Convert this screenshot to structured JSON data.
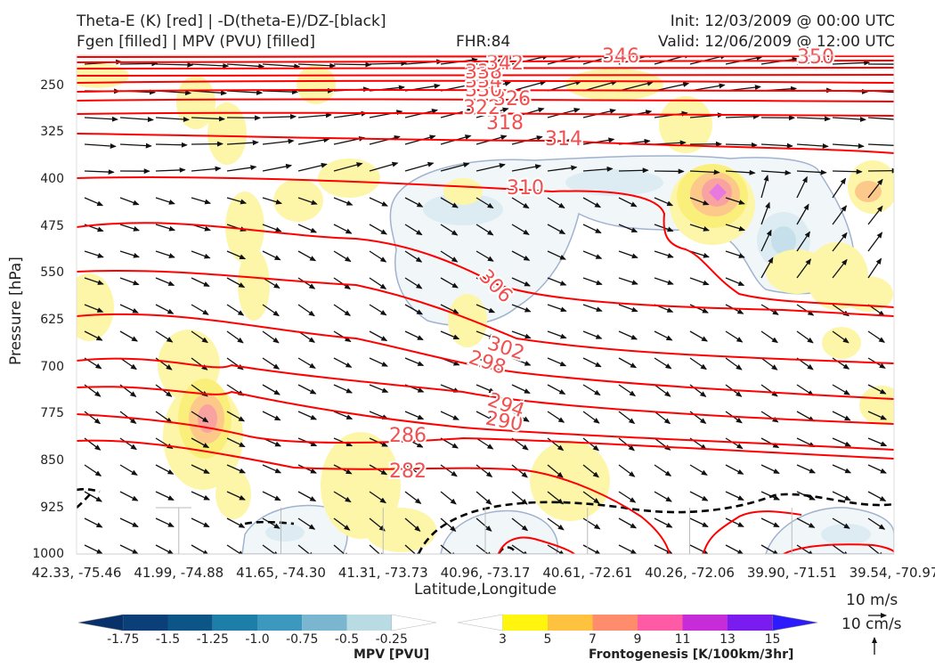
{
  "header": {
    "title_line1": "Theta-E (K) [red] | -D(theta-E)/DZ-[black]",
    "title_line2": "Fgen [filled] | MPV (PVU) [filled]",
    "fhr": "FHR:84",
    "init": "Init: 12/03/2009 @ 00:00 UTC",
    "valid": "Valid: 12/06/2009 @ 12:00 UTC"
  },
  "chart_data": {
    "type": "cross-section",
    "ylabel": "Pressure [hPa]",
    "xlabel": "Latitude,Longitude",
    "yticks": [
      "250",
      "325",
      "400",
      "475",
      "550",
      "625",
      "700",
      "775",
      "850",
      "925",
      "1000"
    ],
    "xticks": [
      "42.33, -75.46",
      "41.99, -74.88",
      "41.65, -74.30",
      "41.31, -73.73",
      "40.96, -73.17",
      "40.61, -72.61",
      "40.26, -72.06",
      "39.90, -71.51",
      "39.54, -70.97"
    ],
    "theta_e_labels": [
      "282",
      "286",
      "290",
      "294",
      "298",
      "302",
      "306",
      "310",
      "314",
      "318",
      "322",
      "326",
      "330",
      "334",
      "338",
      "342",
      "346",
      "350"
    ],
    "theta_e_color": "#ff0000",
    "stability_color": "#000000",
    "vector_reference": {
      "label_ms": "10 m/s",
      "label_cms": "10 cm/s"
    },
    "mpv_colorbar": {
      "label": "MPV [PVU]",
      "ticks": [
        "-1.75",
        "-1.5",
        "-1.25",
        "-1.0",
        "-0.75",
        "-0.5",
        "-0.25"
      ],
      "colors": [
        "#08306b",
        "#0b3f78",
        "#0c5587",
        "#1d7ea8",
        "#3d98be",
        "#7ab6cf",
        "#b9dbe4",
        "#ffffff"
      ]
    },
    "fgen_colorbar": {
      "label": "Frontogenesis [K/100km/3hr]",
      "ticks": [
        "3",
        "5",
        "7",
        "9",
        "11",
        "13",
        "15"
      ],
      "colors": [
        "#ffffff",
        "#fff50f",
        "#ffc23f",
        "#ff8c6b",
        "#ff5aa6",
        "#c62dd8",
        "#7a1bf0",
        "#2d1bff"
      ]
    }
  }
}
